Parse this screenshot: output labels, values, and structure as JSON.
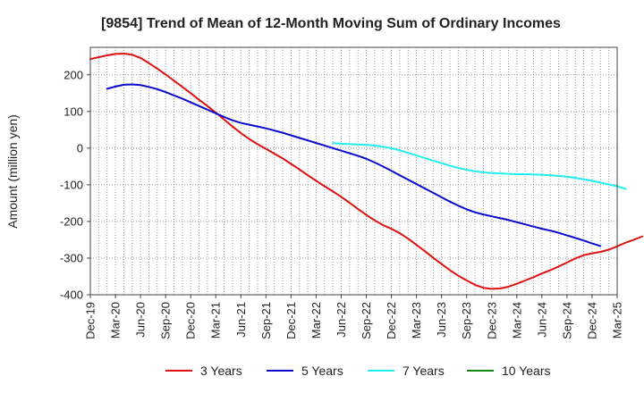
{
  "chart_data": {
    "type": "line",
    "title": "[9854]  Trend of Mean of 12-Month Moving Sum of Ordinary Incomes",
    "xlabel": "",
    "ylabel": "Amount (million yen)",
    "ylim": [
      -400,
      275
    ],
    "yticks": [
      -400,
      -300,
      -200,
      -100,
      0,
      100,
      200
    ],
    "grid": true,
    "legend_position": "bottom-center",
    "x_tick_labels": [
      "Dec-19",
      "Mar-20",
      "Jun-20",
      "Sep-20",
      "Dec-20",
      "Mar-21",
      "Jun-21",
      "Sep-21",
      "Dec-21",
      "Mar-22",
      "Jun-22",
      "Sep-22",
      "Dec-22",
      "Mar-23",
      "Jun-23",
      "Sep-23",
      "Dec-23",
      "Mar-24",
      "Jun-24",
      "Sep-24",
      "Dec-24",
      "Mar-25"
    ],
    "x_months_total": 63,
    "series": [
      {
        "name": "3 Years",
        "color": "#dd1111",
        "start_month": 0,
        "values": [
          243,
          248,
          253,
          257,
          258,
          255,
          246,
          232,
          217,
          201,
          184,
          167,
          150,
          132,
          115,
          97,
          78,
          59,
          41,
          25,
          11,
          -2,
          -15,
          -28,
          -43,
          -58,
          -74,
          -89,
          -104,
          -118,
          -133,
          -149,
          -166,
          -182,
          -197,
          -210,
          -220,
          -232,
          -247,
          -264,
          -281,
          -299,
          -316,
          -333,
          -348,
          -361,
          -373,
          -381,
          -384,
          -383,
          -378,
          -370,
          -361,
          -352,
          -342,
          -333,
          -323,
          -312,
          -301,
          -292,
          -287,
          -283,
          -277,
          -268,
          -258,
          -250,
          -241
        ]
      },
      {
        "name": "5 Years",
        "color": "#0a0acc",
        "start_month": 2,
        "values": [
          162,
          168,
          173,
          174,
          172,
          167,
          161,
          153,
          144,
          135,
          125,
          115,
          105,
          95,
          85,
          76,
          69,
          64,
          59,
          54,
          48,
          42,
          35,
          28,
          21,
          14,
          7,
          0,
          -7,
          -14,
          -21,
          -29,
          -39,
          -50,
          -62,
          -74,
          -86,
          -98,
          -110,
          -122,
          -134,
          -146,
          -157,
          -167,
          -175,
          -181,
          -186,
          -191,
          -196,
          -202,
          -208,
          -214,
          -220,
          -225,
          -231,
          -238,
          -245,
          -252,
          -260,
          -267
        ]
      },
      {
        "name": "7 Years",
        "color": "#22eeee",
        "start_month": 29,
        "values": [
          14,
          12,
          11,
          10,
          9,
          7,
          4,
          0,
          -6,
          -13,
          -20,
          -27,
          -34,
          -41,
          -48,
          -54,
          -59,
          -63,
          -66,
          -68,
          -69,
          -70,
          -71,
          -71,
          -72,
          -73,
          -74,
          -76,
          -78,
          -81,
          -85,
          -89,
          -94,
          -99,
          -104,
          -111
        ]
      },
      {
        "name": "10 Years",
        "color": "#118811",
        "start_month": 0,
        "values": []
      }
    ]
  }
}
